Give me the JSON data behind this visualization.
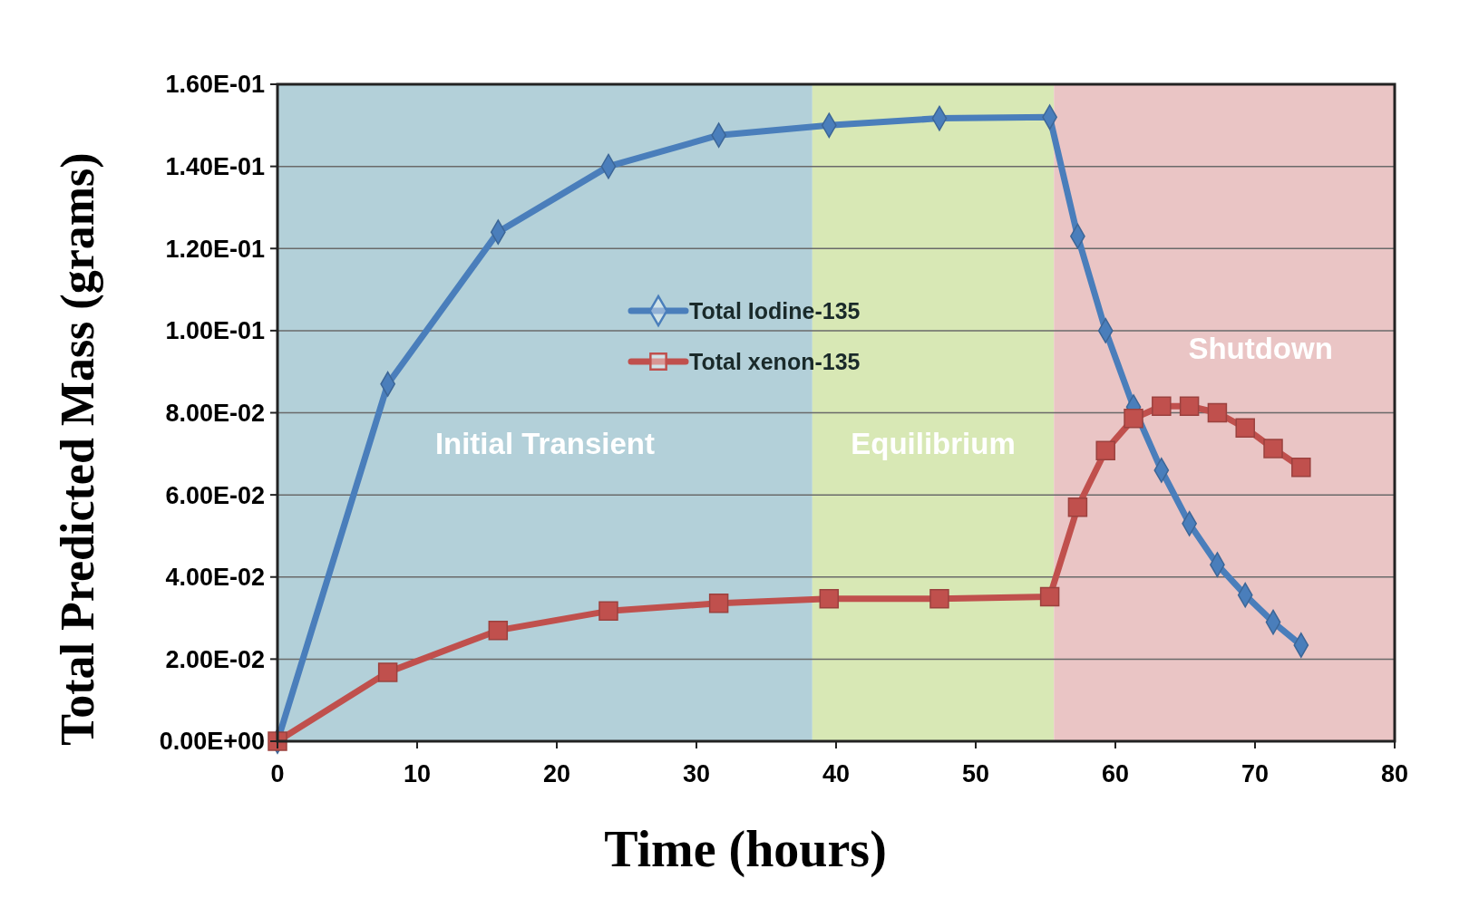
{
  "chart_data": {
    "type": "line",
    "xlabel": "Time (hours)",
    "ylabel": "Total Predicted  Mass (grams)",
    "xlim": [
      0,
      80
    ],
    "xticks": [
      0,
      10,
      20,
      30,
      40,
      50,
      60,
      70,
      80
    ],
    "ylim": [
      0,
      0.16
    ],
    "yticks": [
      {
        "value": 0,
        "label": "0.00E+00"
      },
      {
        "value": 0.02,
        "label": "2.00E-02"
      },
      {
        "value": 0.04,
        "label": "4.00E-02"
      },
      {
        "value": 0.06,
        "label": "6.00E-02"
      },
      {
        "value": 0.08,
        "label": "8.00E-02"
      },
      {
        "value": 0.1,
        "label": "1.00E-01"
      },
      {
        "value": 0.12,
        "label": "1.20E-01"
      },
      {
        "value": 0.14,
        "label": "1.40E-01"
      },
      {
        "value": 0.16,
        "label": "1.60E-01"
      }
    ],
    "grid": "y",
    "legend": "center",
    "x": [
      0,
      7.9,
      15.8,
      23.7,
      31.6,
      39.5,
      47.4,
      55.3,
      57.3,
      59.3,
      61.3,
      63.3,
      65.3,
      67.3,
      69.3,
      71.3,
      73.3
    ],
    "series": [
      {
        "name": "Total Iodine-135",
        "color": "#4a7ebb",
        "marker": "diamond",
        "values": [
          0,
          0.087,
          0.124,
          0.14,
          0.1476,
          0.15,
          0.1517,
          0.152,
          0.123,
          0.1,
          0.0814,
          0.066,
          0.053,
          0.043,
          0.0356,
          0.029,
          0.0234
        ]
      },
      {
        "name": "Total xenon-135",
        "color": "#c0504d",
        "marker": "square",
        "values": [
          0,
          0.0168,
          0.027,
          0.0317,
          0.0336,
          0.0347,
          0.0347,
          0.0352,
          0.057,
          0.0708,
          0.0786,
          0.0816,
          0.0816,
          0.08,
          0.0763,
          0.0713,
          0.0667
        ]
      }
    ],
    "bands": [
      {
        "axis": "x",
        "from": 0,
        "to": 38.3,
        "label": "Initial Transient",
        "color": "#b3d0d9"
      },
      {
        "axis": "x",
        "from": 38.3,
        "to": 55.6,
        "label": "Equilibrium",
        "color": "#d8e8b5"
      },
      {
        "axis": "x",
        "from": 55.6,
        "to": 80,
        "label": "Shutdown",
        "color": "#eac5c5"
      }
    ]
  }
}
